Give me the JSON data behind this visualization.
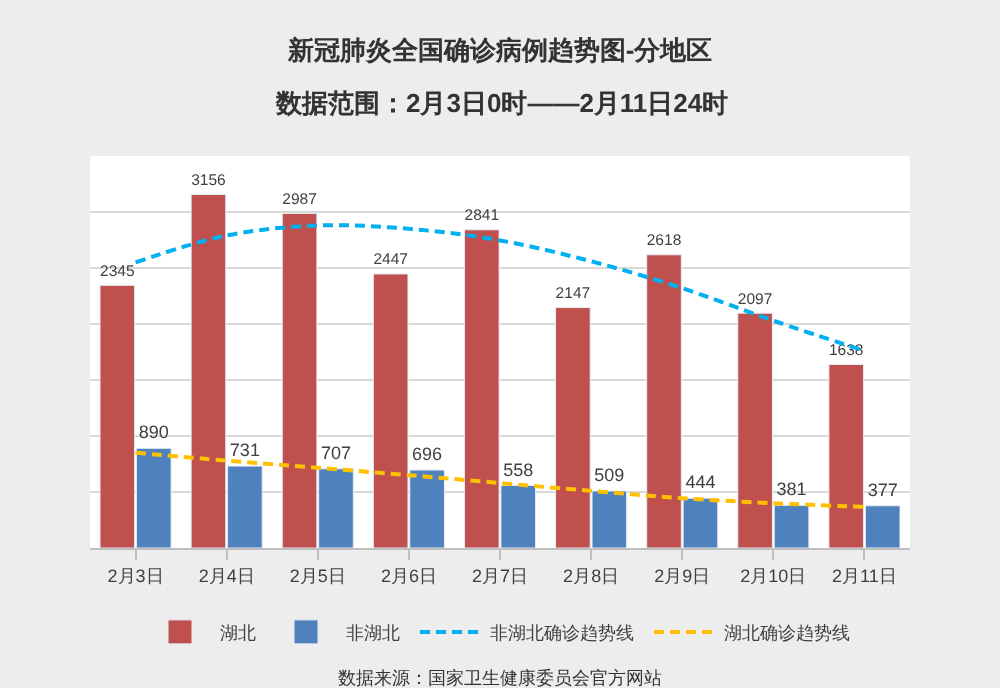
{
  "chart_data": {
    "type": "bar",
    "title": "新冠肺炎全国确诊病例趋势图-分地区",
    "subtitle": "数据范围：2月3日0时——2月11日24时",
    "categories": [
      "2月3日",
      "2月4日",
      "2月5日",
      "2月6日",
      "2月7日",
      "2月8日",
      "2月9日",
      "2月10日",
      "2月11日"
    ],
    "series": [
      {
        "name": "湖北",
        "color": "#c0504d",
        "values": [
          2345,
          3156,
          2987,
          2447,
          2841,
          2147,
          2618,
          2097,
          1638
        ],
        "value_labels": [
          "2345",
          "3156",
          "2987",
          "2447",
          "2841",
          "2147",
          "2618",
          "2097",
          "1638"
        ]
      },
      {
        "name": "非湖北",
        "color": "#4f81bd",
        "values": [
          890,
          731,
          707,
          696,
          558,
          509,
          444,
          381,
          377
        ],
        "value_labels": [
          "890",
          "731",
          "707",
          "696",
          "558",
          "509",
          "444",
          "381",
          "377"
        ]
      },
      {
        "name": "非湖北确诊趋势线",
        "type": "line",
        "line_style": "dashed",
        "color": "#00b0f0",
        "values": [
          2550,
          2790,
          2880,
          2850,
          2746,
          2560,
          2320,
          2030,
          1760
        ]
      },
      {
        "name": "湖北确诊趋势线",
        "type": "line",
        "line_style": "dashed",
        "color": "#ffc000",
        "values": [
          851,
          780,
          716,
          650,
          580,
          510,
          445,
          400,
          367
        ]
      }
    ],
    "ylim": [
      0,
      3500
    ],
    "yticks": [
      {
        "value": 0,
        "label": null
      },
      {
        "value": 500,
        "label": null
      },
      {
        "value": 1000,
        "label": null
      },
      {
        "value": 1500,
        "label": null
      },
      {
        "value": 2000,
        "label": null
      },
      {
        "value": 2500,
        "label": null
      },
      {
        "value": 3000,
        "label": null
      },
      {
        "value": 3500,
        "label": null
      }
    ],
    "tick_labels": "x",
    "grid": "y",
    "legend": "bottom",
    "annotations": [
      "数据来源：国家卫生健康委员会官方网站"
    ]
  }
}
